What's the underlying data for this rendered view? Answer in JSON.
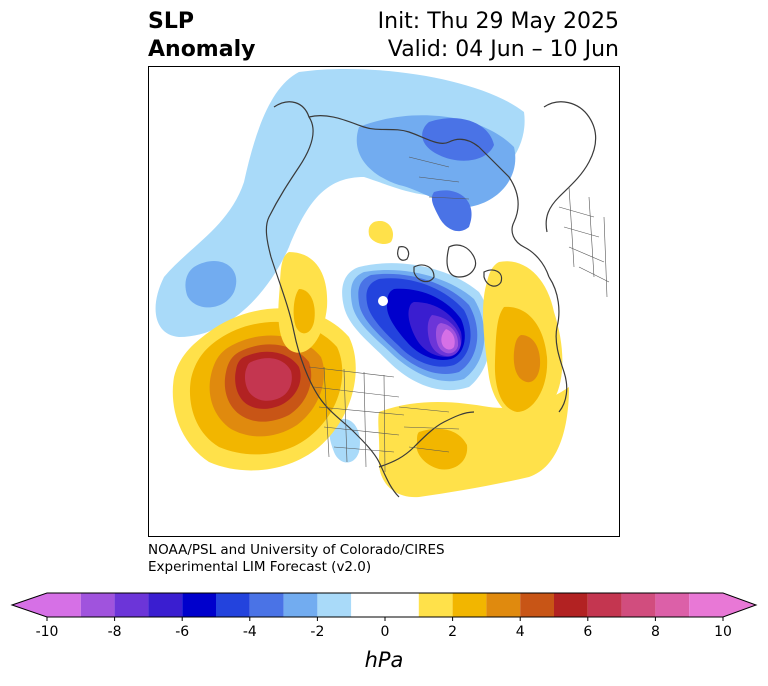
{
  "title": {
    "left_line1": "SLP",
    "left_line2": "Anomaly",
    "right_line1": "Init: Thu 29 May 2025",
    "right_line2": "Valid: 04 Jun – 10 Jun"
  },
  "credit": {
    "line1": "NOAA/PSL and University of Colorado/CIRES",
    "line2": "Experimental LIM Forecast (v2.0)"
  },
  "colorbar": {
    "label": "hPa",
    "ticks": [
      "-10",
      "-8",
      "-6",
      "-4",
      "-2",
      "0",
      "2",
      "4",
      "6",
      "8",
      "10"
    ],
    "levels": [
      -10,
      -9,
      -8,
      -7,
      -6,
      -5,
      -4,
      -3,
      -2,
      -1,
      1,
      2,
      3,
      4,
      5,
      6,
      7,
      8,
      9,
      10
    ],
    "colors": [
      "#d670e6",
      "#a053dd",
      "#6c35d8",
      "#3a1ed0",
      "#0000cc",
      "#2343dd",
      "#4a73e6",
      "#72acf0",
      "#a9daf9",
      "#ffffff",
      "#ffe14a",
      "#f2b600",
      "#e08a0e",
      "#c85516",
      "#b22222",
      "#c43650",
      "#d14d7e",
      "#dc60a8",
      "#e878d6"
    ],
    "under_color": "#d670e6",
    "over_color": "#e878d6"
  },
  "map": {
    "projection": "north-polar-stereographic",
    "features": {
      "negative_centers": [
        "north-atlantic-low",
        "arctic-low",
        "north-pacific-trough"
      ],
      "positive_centers": [
        "gulf-of-alaska-high",
        "eastern-us-ridge",
        "western-russia-ridge"
      ]
    }
  }
}
